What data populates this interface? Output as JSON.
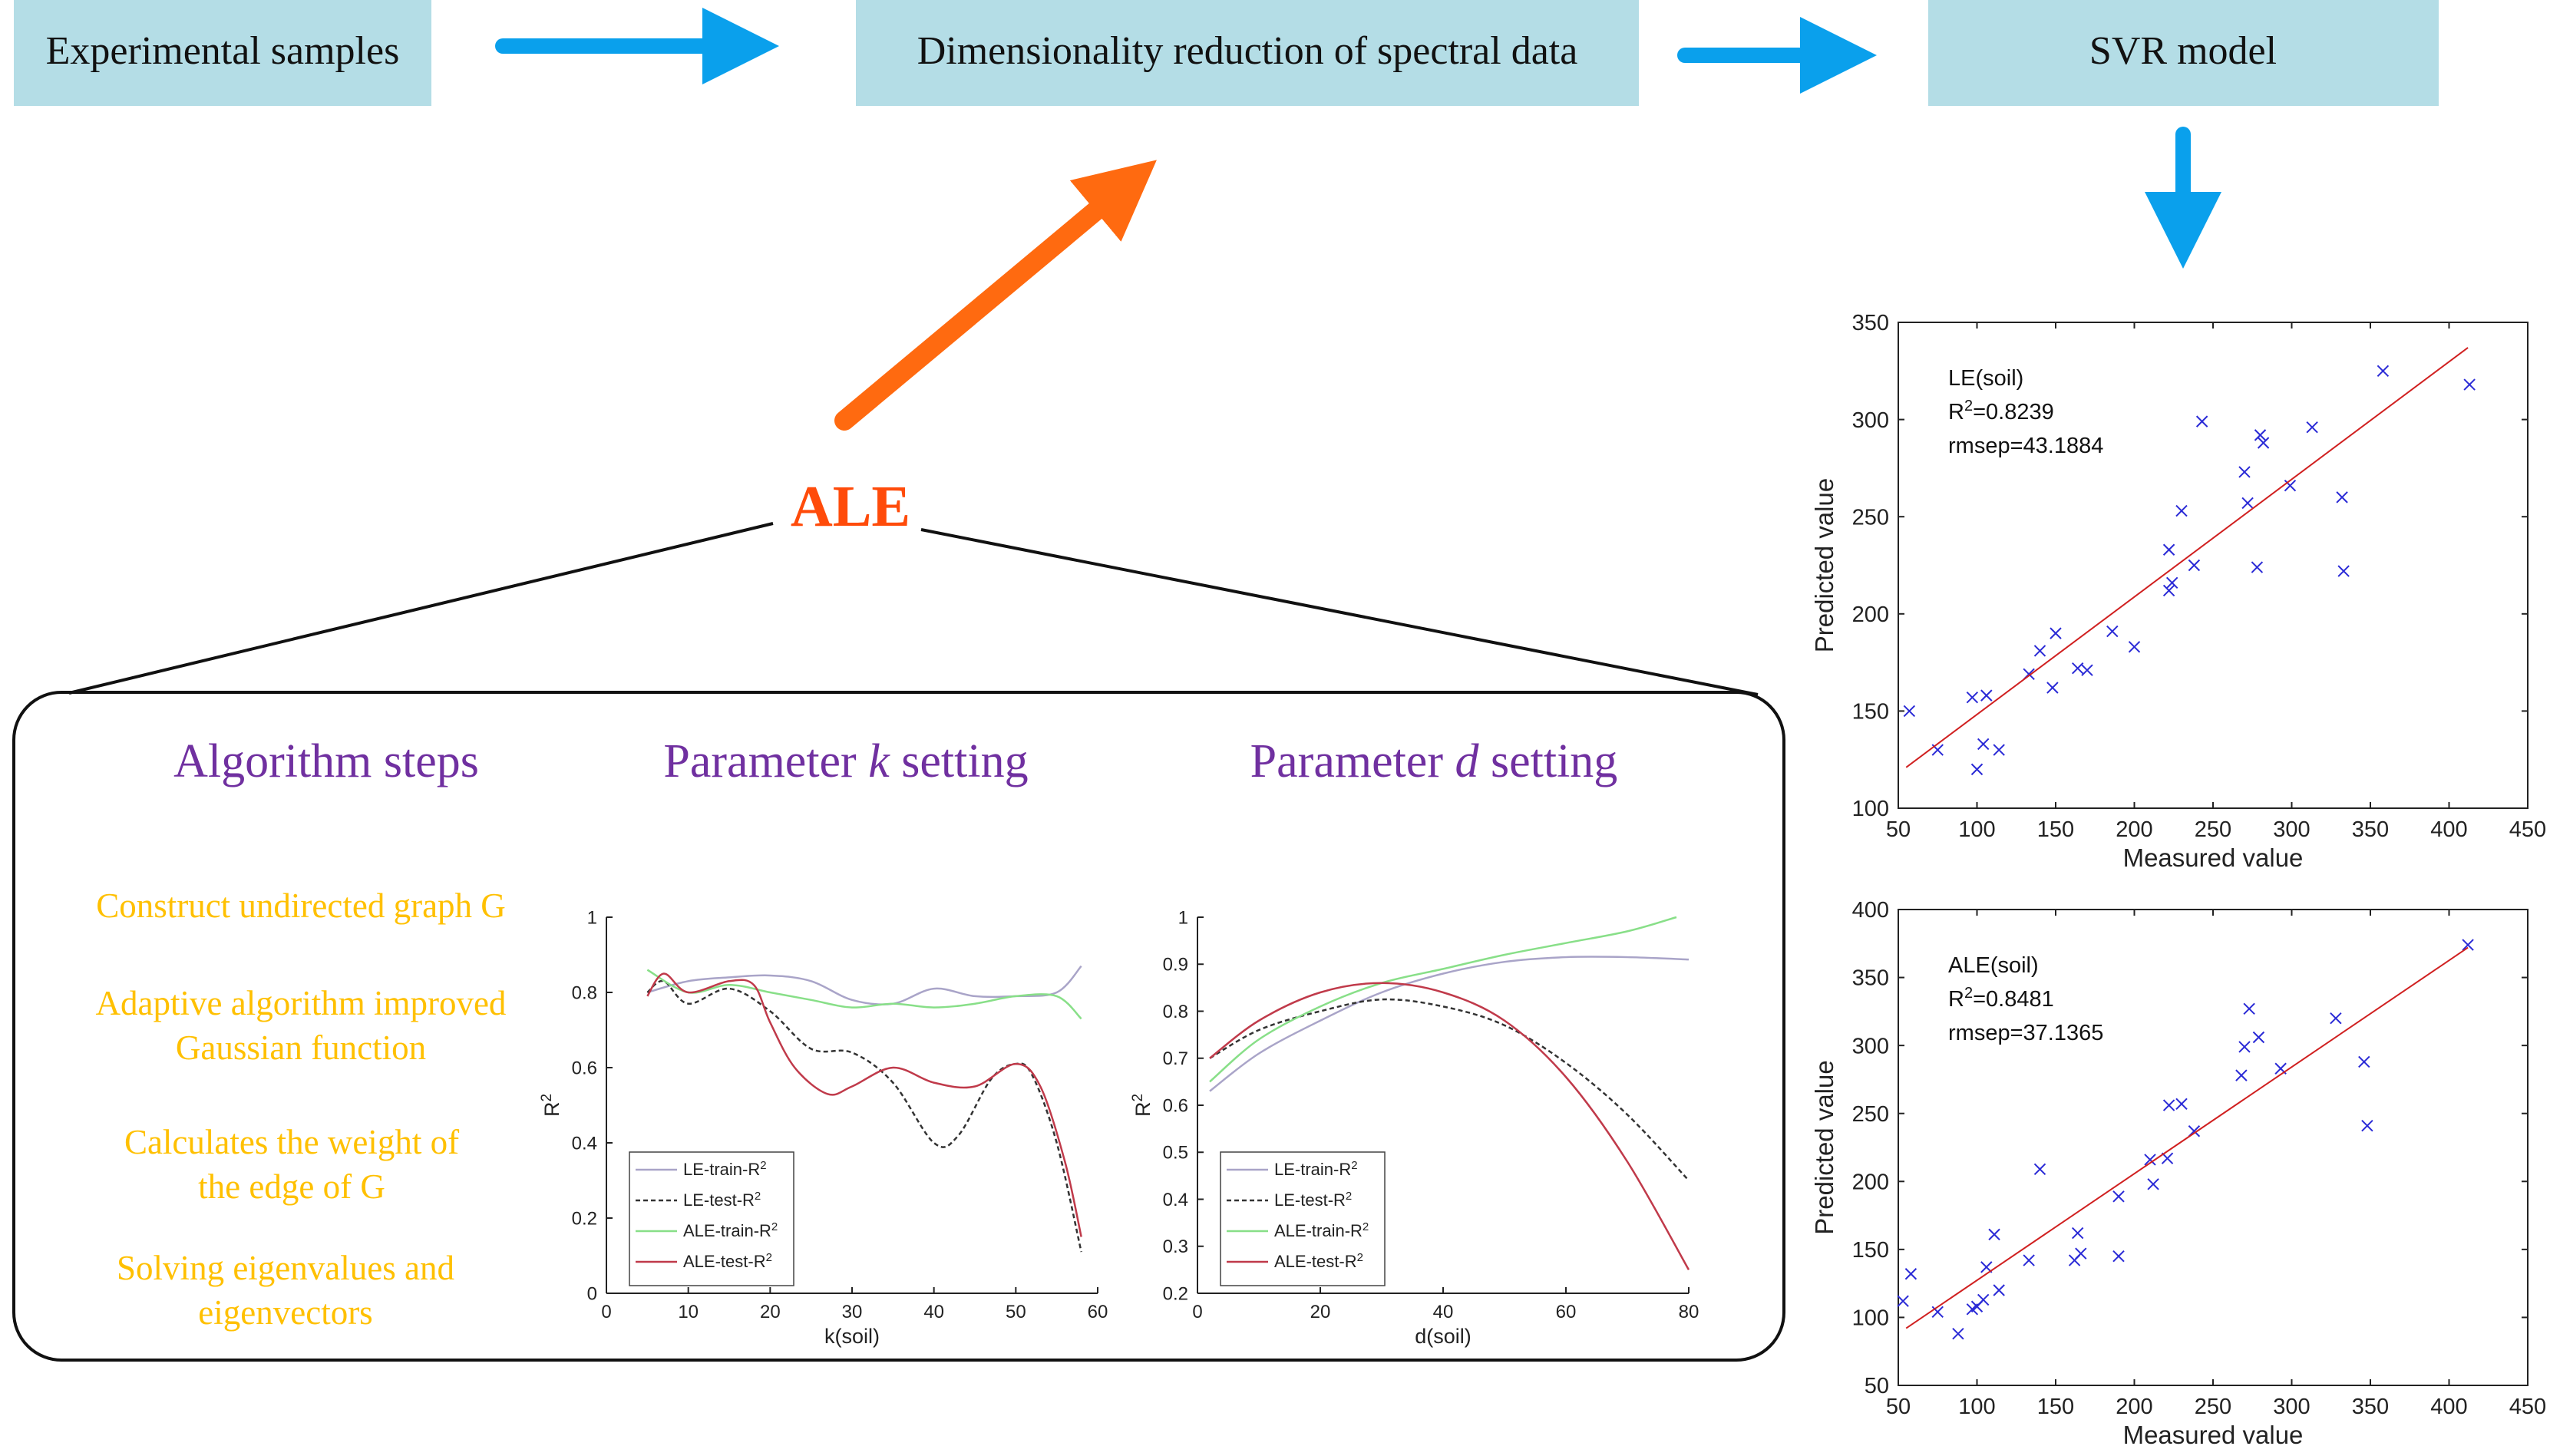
{
  "flow": {
    "box1": "Experimental samples",
    "box2": "Dimensionality reduction of spectral data",
    "box3": "SVR model",
    "method": "ALE",
    "box_color": "#b4dde6",
    "arrow_color": "#0aa0ec",
    "method_color": "#ff4b0a",
    "method_arrow_color": "#ff6a10"
  },
  "panel": {
    "col1_title": "Algorithm steps",
    "col2_title_prefix": "Parameter ",
    "col2_title_var": "k",
    "col2_title_suffix": " setting",
    "col3_title_prefix": "Parameter ",
    "col3_title_var": "d",
    "col3_title_suffix": " setting",
    "title_color": "#7030a0",
    "step_color": "#ffc000",
    "steps": [
      [
        "Construct undirected graph G"
      ],
      [
        "Adaptive algorithm improved",
        "Gaussian function"
      ],
      [
        "Calculates the weight of",
        "the edge of G"
      ],
      [
        "Solving eigenvalues and",
        "eigenvectors"
      ]
    ]
  },
  "chart_data": [
    {
      "type": "line",
      "id": "k-setting",
      "xlabel": "k(soil)",
      "ylabel": "R^2",
      "xlim": [
        0,
        60
      ],
      "ylim": [
        0,
        1
      ],
      "xticks": [
        0,
        10,
        20,
        30,
        40,
        50,
        60
      ],
      "yticks": [
        0,
        0.2,
        0.4,
        0.6,
        0.8,
        1
      ],
      "legend_position": "bottom-left",
      "series": [
        {
          "name": "LE-train-R^2",
          "color": "#a9a4c8",
          "dash": "",
          "x": [
            5,
            10,
            15,
            20,
            25,
            30,
            35,
            40,
            45,
            50,
            55,
            58
          ],
          "y": [
            0.8,
            0.83,
            0.84,
            0.845,
            0.83,
            0.78,
            0.77,
            0.81,
            0.79,
            0.79,
            0.8,
            0.87
          ]
        },
        {
          "name": "LE-test-R^2",
          "color": "#333333",
          "dash": "6,4",
          "x": [
            5,
            7,
            10,
            15,
            20,
            25,
            30,
            35,
            40,
            43,
            47,
            50,
            52,
            55,
            58
          ],
          "y": [
            0.8,
            0.83,
            0.77,
            0.81,
            0.75,
            0.65,
            0.64,
            0.56,
            0.4,
            0.42,
            0.57,
            0.61,
            0.58,
            0.4,
            0.11
          ]
        },
        {
          "name": "ALE-train-R^2",
          "color": "#88df88",
          "dash": "",
          "x": [
            5,
            10,
            15,
            20,
            25,
            30,
            35,
            40,
            45,
            50,
            55,
            58
          ],
          "y": [
            0.86,
            0.8,
            0.82,
            0.8,
            0.78,
            0.76,
            0.77,
            0.76,
            0.77,
            0.79,
            0.79,
            0.73
          ]
        },
        {
          "name": "ALE-test-R^2",
          "color": "#c03a4a",
          "dash": "",
          "x": [
            5,
            7,
            10,
            15,
            18,
            20,
            23,
            27,
            30,
            35,
            40,
            45,
            50,
            53,
            56,
            58
          ],
          "y": [
            0.79,
            0.85,
            0.8,
            0.83,
            0.82,
            0.72,
            0.6,
            0.53,
            0.55,
            0.6,
            0.56,
            0.55,
            0.61,
            0.55,
            0.35,
            0.15
          ]
        }
      ]
    },
    {
      "type": "line",
      "id": "d-setting",
      "xlabel": "d(soil)",
      "ylabel": "R^2",
      "xlim": [
        0,
        80
      ],
      "ylim": [
        0.2,
        1
      ],
      "xticks": [
        0,
        20,
        40,
        60,
        80
      ],
      "yticks": [
        0.2,
        0.3,
        0.4,
        0.5,
        0.6,
        0.7,
        0.8,
        0.9,
        1
      ],
      "legend_position": "bottom-left",
      "series": [
        {
          "name": "LE-train-R^2",
          "color": "#a9a4c8",
          "dash": "",
          "x": [
            2,
            10,
            20,
            30,
            40,
            50,
            60,
            70,
            80
          ],
          "y": [
            0.63,
            0.71,
            0.78,
            0.84,
            0.88,
            0.905,
            0.915,
            0.915,
            0.91
          ]
        },
        {
          "name": "LE-test-R^2",
          "color": "#333333",
          "dash": "6,4",
          "x": [
            2,
            10,
            20,
            30,
            40,
            50,
            60,
            70,
            80
          ],
          "y": [
            0.7,
            0.76,
            0.8,
            0.825,
            0.81,
            0.77,
            0.69,
            0.58,
            0.44
          ]
        },
        {
          "name": "ALE-train-R^2",
          "color": "#88df88",
          "dash": "",
          "x": [
            2,
            10,
            20,
            30,
            40,
            50,
            60,
            70,
            78
          ],
          "y": [
            0.65,
            0.74,
            0.81,
            0.86,
            0.89,
            0.92,
            0.945,
            0.97,
            1.0
          ]
        },
        {
          "name": "ALE-test-R^2",
          "color": "#c03a4a",
          "dash": "",
          "x": [
            2,
            10,
            20,
            30,
            40,
            50,
            60,
            70,
            80
          ],
          "y": [
            0.7,
            0.78,
            0.84,
            0.86,
            0.84,
            0.78,
            0.66,
            0.48,
            0.25
          ]
        }
      ]
    },
    {
      "type": "scatter",
      "id": "le-soil",
      "xlabel": "Measured value",
      "ylabel": "Predicted value",
      "xlim": [
        50,
        450
      ],
      "ylim": [
        100,
        350
      ],
      "xticks": [
        50,
        100,
        150,
        200,
        250,
        300,
        350,
        400,
        450
      ],
      "yticks": [
        100,
        150,
        200,
        250,
        300,
        350
      ],
      "annotation": [
        "LE(soil)",
        "R^2=0.8239",
        "rmsep=43.1884"
      ],
      "points": [
        [
          57,
          150
        ],
        [
          75,
          130
        ],
        [
          97,
          157
        ],
        [
          100,
          120
        ],
        [
          104,
          133
        ],
        [
          106,
          158
        ],
        [
          114,
          130
        ],
        [
          133,
          169
        ],
        [
          140,
          181
        ],
        [
          148,
          162
        ],
        [
          150,
          190
        ],
        [
          164,
          172
        ],
        [
          170,
          171
        ],
        [
          186,
          191
        ],
        [
          200,
          183
        ],
        [
          222,
          212
        ],
        [
          222,
          233
        ],
        [
          224,
          216
        ],
        [
          230,
          253
        ],
        [
          238,
          225
        ],
        [
          243,
          299
        ],
        [
          270,
          273
        ],
        [
          272,
          257
        ],
        [
          278,
          224
        ],
        [
          280,
          292
        ],
        [
          282,
          288
        ],
        [
          299,
          266
        ],
        [
          313,
          296
        ],
        [
          332,
          260
        ],
        [
          333,
          222
        ],
        [
          358,
          325
        ],
        [
          413,
          318
        ]
      ],
      "fit_line": {
        "x": [
          55,
          412
        ],
        "y": [
          121,
          337
        ]
      }
    },
    {
      "type": "scatter",
      "id": "ale-soil",
      "xlabel": "Measured value",
      "ylabel": "Predicted value",
      "xlim": [
        50,
        450
      ],
      "ylim": [
        50,
        400
      ],
      "xticks": [
        50,
        100,
        150,
        200,
        250,
        300,
        350,
        400,
        450
      ],
      "yticks": [
        50,
        100,
        150,
        200,
        250,
        300,
        350,
        400
      ],
      "annotation": [
        "ALE(soil)",
        "R^2=0.8481",
        "rmsep=37.1365"
      ],
      "points": [
        [
          53,
          112
        ],
        [
          58,
          132
        ],
        [
          75,
          104
        ],
        [
          88,
          88
        ],
        [
          97,
          106
        ],
        [
          100,
          108
        ],
        [
          104,
          113
        ],
        [
          106,
          137
        ],
        [
          111,
          161
        ],
        [
          114,
          120
        ],
        [
          133,
          142
        ],
        [
          140,
          209
        ],
        [
          162,
          142
        ],
        [
          164,
          162
        ],
        [
          166,
          147
        ],
        [
          190,
          145
        ],
        [
          190,
          189
        ],
        [
          210,
          216
        ],
        [
          212,
          198
        ],
        [
          221,
          217
        ],
        [
          222,
          256
        ],
        [
          230,
          257
        ],
        [
          238,
          237
        ],
        [
          268,
          278
        ],
        [
          270,
          299
        ],
        [
          273,
          327
        ],
        [
          279,
          306
        ],
        [
          293,
          283
        ],
        [
          328,
          320
        ],
        [
          346,
          288
        ],
        [
          348,
          241
        ],
        [
          412,
          374
        ]
      ],
      "fit_line": {
        "x": [
          55,
          412
        ],
        "y": [
          92,
          372
        ]
      }
    }
  ]
}
